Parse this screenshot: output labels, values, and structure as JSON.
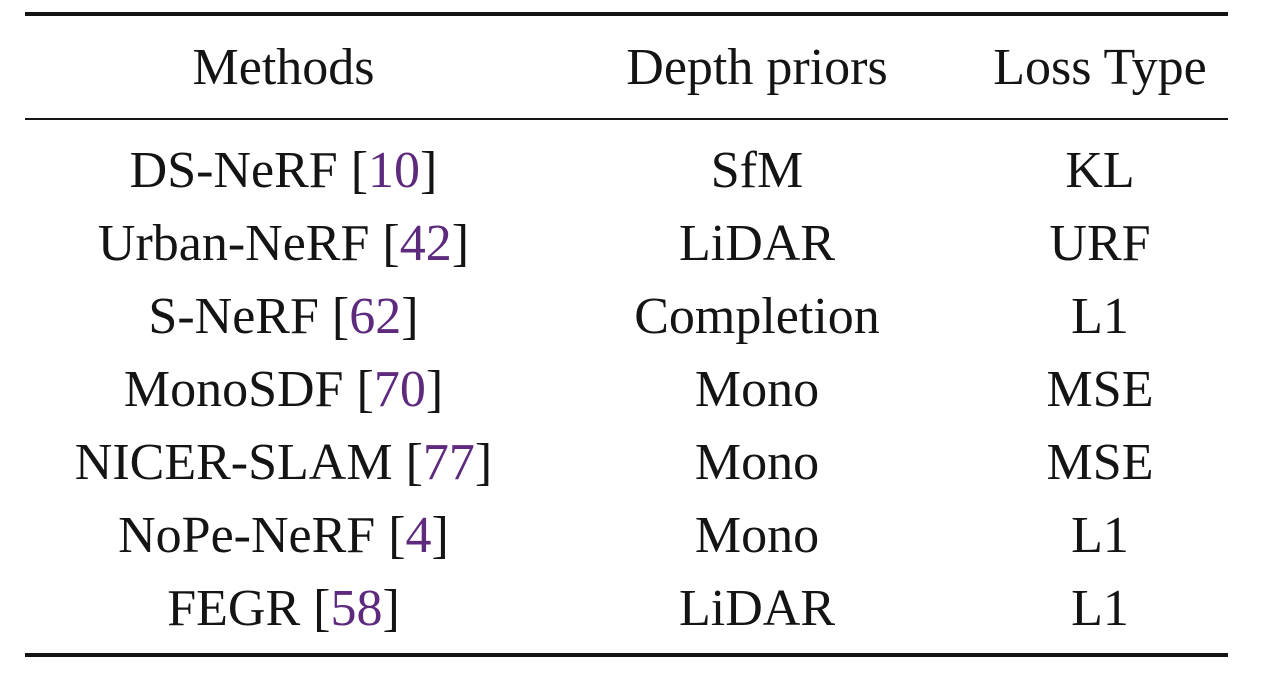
{
  "table": {
    "headers": {
      "methods": "Methods",
      "depth_priors": "Depth priors",
      "loss_type": "Loss Type"
    },
    "rows": [
      {
        "method": "DS-NeRF",
        "cite": "10",
        "depth": "SfM",
        "loss": "KL"
      },
      {
        "method": "Urban-NeRF",
        "cite": "42",
        "depth": "LiDAR",
        "loss": "URF"
      },
      {
        "method": "S-NeRF",
        "cite": "62",
        "depth": "Completion",
        "loss": "L1"
      },
      {
        "method": "MonoSDF",
        "cite": "70",
        "depth": "Mono",
        "loss": "MSE"
      },
      {
        "method": "NICER-SLAM",
        "cite": "77",
        "depth": "Mono",
        "loss": "MSE"
      },
      {
        "method": "NoPe-NeRF",
        "cite": "4",
        "depth": "Mono",
        "loss": "L1"
      },
      {
        "method": "FEGR",
        "cite": "58",
        "depth": "LiDAR",
        "loss": "L1"
      }
    ]
  },
  "colors": {
    "text": "#141414",
    "citation": "#5e2a7e"
  }
}
